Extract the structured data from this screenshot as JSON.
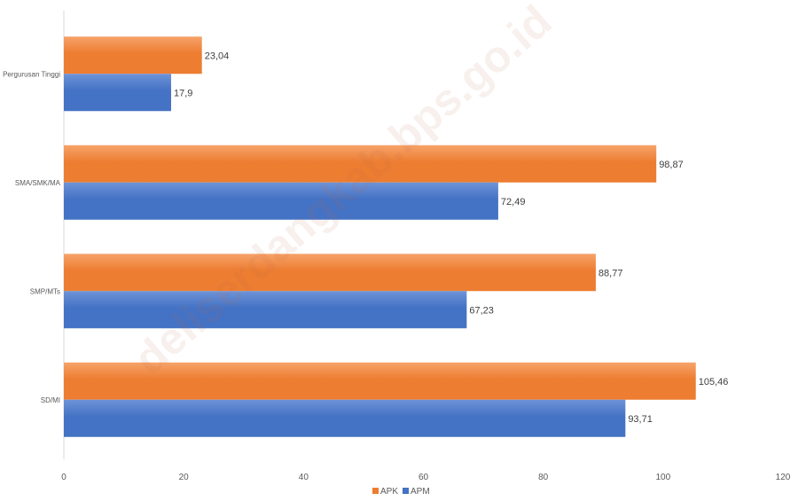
{
  "chart_data": {
    "type": "bar",
    "orientation": "horizontal",
    "categories": [
      "Pergurusan Tinggi",
      "SMA/SMK/MA",
      "SMP/MTs",
      "SD/MI"
    ],
    "series": [
      {
        "name": "APK",
        "values": [
          23.04,
          98.87,
          88.77,
          105.46
        ],
        "labels": [
          "23,04",
          "98,87",
          "88,77",
          "105,46"
        ],
        "color": "#ED7D31"
      },
      {
        "name": "APM",
        "values": [
          17.9,
          72.49,
          67.23,
          93.71
        ],
        "labels": [
          "17,9",
          "72,49",
          "67,23",
          "93,71"
        ],
        "color": "#4472C4"
      }
    ],
    "xlim": [
      0,
      120
    ],
    "xticks": [
      0,
      20,
      40,
      60,
      80,
      100,
      120
    ],
    "legend_position": "bottom",
    "grid": false
  },
  "watermark": "deliserdangkab.bps.go.id"
}
